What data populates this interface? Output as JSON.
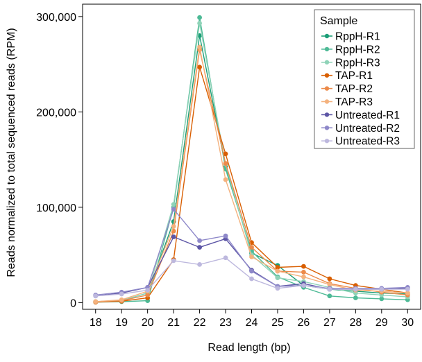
{
  "chart_data": {
    "type": "line",
    "xlabel": "Read length (bp)",
    "ylabel": "Reads normalized to total sequenced reads (RPM)",
    "x": [
      18,
      19,
      20,
      21,
      22,
      23,
      24,
      25,
      26,
      27,
      28,
      29,
      30
    ],
    "xlim": [
      17.5,
      30.5
    ],
    "ylim": [
      -7000,
      313000
    ],
    "yticks": [
      0,
      100000,
      200000,
      300000
    ],
    "ytick_labels": [
      "0",
      "100,000",
      "200,000",
      "300,000"
    ],
    "grid": false,
    "legend": {
      "title": "Sample",
      "placement": "top-right"
    },
    "series": [
      {
        "name": "RppH-R1",
        "color": "#1b9e77",
        "values": [
          1000,
          2000,
          10000,
          85000,
          280000,
          143000,
          52000,
          39000,
          18000,
          14000,
          12000,
          10000,
          9000
        ]
      },
      {
        "name": "RppH-R2",
        "color": "#4dba96",
        "values": [
          500,
          1000,
          2000,
          100000,
          299000,
          140000,
          54000,
          27000,
          16000,
          7000,
          5000,
          4000,
          3000
        ]
      },
      {
        "name": "RppH-R3",
        "color": "#8fd3b8",
        "values": [
          1000,
          2000,
          10000,
          103000,
          293000,
          145000,
          50000,
          26000,
          22000,
          16000,
          10000,
          8000,
          6000
        ]
      },
      {
        "name": "TAP-R1",
        "color": "#d95f02",
        "values": [
          500,
          1500,
          5000,
          45000,
          247000,
          156000,
          63000,
          37000,
          38000,
          25000,
          18000,
          14000,
          10000
        ]
      },
      {
        "name": "TAP-R2",
        "color": "#ec8a4a",
        "values": [
          1000,
          2000,
          8000,
          75000,
          265000,
          146000,
          58000,
          33000,
          32000,
          20000,
          15000,
          11000,
          8000
        ]
      },
      {
        "name": "TAP-R3",
        "color": "#f4b27e",
        "values": [
          1000,
          3000,
          12000,
          80000,
          268000,
          129000,
          48000,
          33000,
          27000,
          19000,
          13000,
          12000,
          10000
        ]
      },
      {
        "name": "Untreated-R1",
        "color": "#5c55a5",
        "values": [
          7000,
          10000,
          16000,
          69000,
          58000,
          67000,
          34000,
          17000,
          20000,
          14000,
          14000,
          14000,
          15000
        ]
      },
      {
        "name": "Untreated-R2",
        "color": "#8e88c9",
        "values": [
          8000,
          11000,
          16000,
          98000,
          65000,
          70000,
          33000,
          17000,
          18000,
          15000,
          15000,
          15000,
          16000
        ]
      },
      {
        "name": "Untreated-R3",
        "color": "#bdb8de",
        "values": [
          7000,
          9000,
          13000,
          44000,
          40000,
          47000,
          25000,
          15000,
          18000,
          14000,
          14000,
          14000,
          14000
        ]
      }
    ]
  }
}
